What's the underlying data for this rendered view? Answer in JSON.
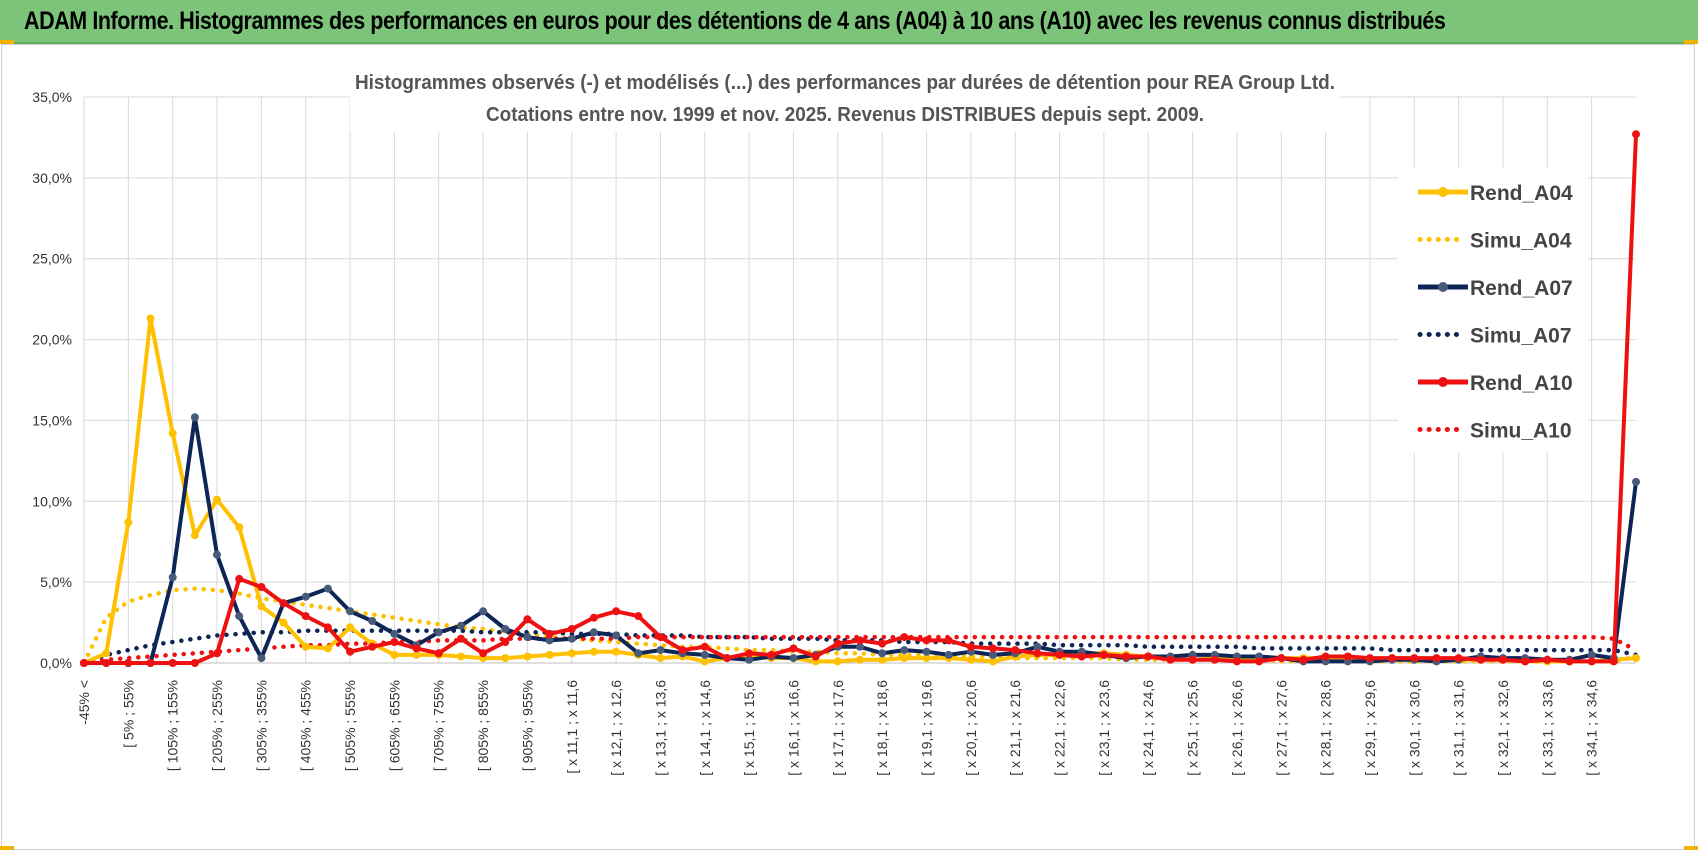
{
  "banner": {
    "title": "ADAM Informe. Histogrammes des performances en euros pour des détentions de 4 ans (A04) à 10 ans (A10) avec les revenus connus distribués",
    "color": "#7cc47a"
  },
  "chart_data": {
    "type": "line",
    "title": "Histogrammes observés (-) et modélisés (...) des performances par durées de détention pour REA Group Ltd.",
    "subtitle": "Cotations entre nov. 1999 et nov. 2025. Revenus DISTRIBUES depuis sept. 2009.",
    "xlabel": "",
    "ylabel": "",
    "ylim": [
      0,
      35
    ],
    "yticks": [
      "0,0%",
      "5,0%",
      "10,0%",
      "15,0%",
      "20,0%",
      "25,0%",
      "30,0%",
      "35,0%"
    ],
    "grid": true,
    "legend_position": "right",
    "x_labels": [
      "-45% <",
      "[ 5% ; 55%",
      "[ 105% ; 155%",
      "[ 205% ; 255%",
      "[ 305% ; 355%",
      "[ 405% ; 455%",
      "[ 505% ; 555%",
      "[ 605% ; 655%",
      "[ 705% ; 755%",
      "[ 805% ; 855%",
      "[ 905% ; 955%",
      "[ x 11,1 ; x 11,6",
      "[ x 12,1 ; x 12,6",
      "[ x 13,1 ; x 13,6",
      "[ x 14,1 ; x 14,6",
      "[ x 15,1 ; x 15,6",
      "[ x 16,1 ; x 16,6",
      "[ x 17,1 ; x 17,6",
      "[ x 18,1 ; x 18,6",
      "[ x 19,1 ; x 19,6",
      "[ x 20,1 ; x 20,6",
      "[ x 21,1 ; x 21,6",
      "[ x 22,1 ; x 22,6",
      "[ x 23,1 ; x 23,6",
      "[ x 24,1 ; x 24,6",
      "[ x 25,1 ; x 25,6",
      "[ x 26,1 ; x 26,6",
      "[ x 27,1 ; x 27,6",
      "[ x 28,1 ; x 28,6",
      "[ x 29,1 ; x 29,6",
      "[ x 30,1 ; x 30,6",
      "[ x 31,1 ; x 31,6",
      "[ x 32,1 ; x 32,6",
      "[ x 33,1 ; x 33,6",
      "[ x 34,1 ; x 34,6"
    ],
    "n_bins": 71,
    "series": [
      {
        "name": "Rend_A04",
        "color": "#ffc000",
        "style": "solid",
        "values": [
          0.0,
          0.6,
          8.7,
          21.3,
          14.2,
          7.9,
          10.1,
          8.4,
          3.5,
          2.5,
          1.0,
          0.9,
          2.2,
          1.2,
          0.5,
          0.5,
          0.5,
          0.4,
          0.3,
          0.3,
          0.4,
          0.5,
          0.6,
          0.7,
          0.7,
          0.5,
          0.3,
          0.4,
          0.1,
          0.3,
          0.4,
          0.3,
          0.3,
          0.1,
          0.1,
          0.2,
          0.2,
          0.3,
          0.3,
          0.3,
          0.2,
          0.1,
          0.4,
          0.5,
          0.5,
          0.6,
          0.6,
          0.5,
          0.4,
          0.3,
          0.2,
          0.3,
          0.3,
          0.2,
          0.3,
          0.3,
          0.3,
          0.3,
          0.2,
          0.3,
          0.2,
          0.2,
          0.2,
          0.2,
          0.2,
          0.1,
          0.1,
          0.1,
          0.1,
          0.2,
          0.3
        ]
      },
      {
        "name": "Simu_A04",
        "color": "#ffc000",
        "style": "dotted",
        "values": [
          0.0,
          2.8,
          3.8,
          4.2,
          4.5,
          4.6,
          4.5,
          4.3,
          4.0,
          3.8,
          3.6,
          3.4,
          3.2,
          3.0,
          2.8,
          2.6,
          2.4,
          2.2,
          2.1,
          1.9,
          1.8,
          1.6,
          1.5,
          1.4,
          1.3,
          1.2,
          1.1,
          1.0,
          1.0,
          0.9,
          0.8,
          0.8,
          0.7,
          0.7,
          0.6,
          0.6,
          0.5,
          0.5,
          0.5,
          0.4,
          0.4,
          0.4,
          0.3,
          0.3,
          0.3,
          0.3,
          0.3,
          0.2,
          0.2,
          0.2,
          0.2,
          0.2,
          0.2,
          0.2,
          0.1,
          0.1,
          0.1,
          0.1,
          0.1,
          0.1,
          0.1,
          0.1,
          0.1,
          0.1,
          0.1,
          0.1,
          0.1,
          0.1,
          0.1,
          0.1,
          0.4
        ]
      },
      {
        "name": "Rend_A07",
        "color": "#0d2557",
        "style": "solid",
        "values": [
          0.0,
          0.0,
          0.0,
          0.0,
          5.3,
          15.2,
          6.7,
          2.9,
          0.3,
          3.7,
          4.1,
          4.6,
          3.2,
          2.6,
          1.8,
          1.1,
          1.9,
          2.3,
          3.2,
          2.1,
          1.6,
          1.4,
          1.5,
          1.9,
          1.7,
          0.6,
          0.8,
          0.6,
          0.5,
          0.3,
          0.2,
          0.4,
          0.3,
          0.5,
          1.0,
          1.0,
          0.6,
          0.8,
          0.7,
          0.5,
          0.7,
          0.5,
          0.6,
          1.0,
          0.7,
          0.7,
          0.5,
          0.3,
          0.4,
          0.4,
          0.5,
          0.5,
          0.4,
          0.4,
          0.3,
          0.1,
          0.1,
          0.1,
          0.1,
          0.2,
          0.2,
          0.1,
          0.2,
          0.4,
          0.3,
          0.3,
          0.2,
          0.2,
          0.5,
          0.3,
          11.2
        ]
      },
      {
        "name": "Simu_A07",
        "color": "#0d2557",
        "style": "dotted",
        "values": [
          0.0,
          0.5,
          0.8,
          1.1,
          1.3,
          1.5,
          1.7,
          1.8,
          1.9,
          1.9,
          2.0,
          2.0,
          2.0,
          2.0,
          2.0,
          2.0,
          2.0,
          2.0,
          1.9,
          1.9,
          1.9,
          1.9,
          1.8,
          1.8,
          1.8,
          1.7,
          1.7,
          1.7,
          1.6,
          1.6,
          1.6,
          1.5,
          1.5,
          1.5,
          1.4,
          1.4,
          1.4,
          1.3,
          1.3,
          1.3,
          1.2,
          1.2,
          1.2,
          1.2,
          1.1,
          1.1,
          1.1,
          1.1,
          1.0,
          1.0,
          1.0,
          1.0,
          1.0,
          0.9,
          0.9,
          0.9,
          0.9,
          0.9,
          0.9,
          0.8,
          0.8,
          0.8,
          0.8,
          0.8,
          0.8,
          0.8,
          0.8,
          0.8,
          0.8,
          0.8,
          0.5
        ]
      },
      {
        "name": "Rend_A10",
        "color": "#ee1111",
        "style": "solid",
        "values": [
          0.0,
          0.0,
          0.0,
          0.0,
          0.0,
          0.0,
          0.6,
          5.2,
          4.7,
          3.7,
          2.9,
          2.2,
          0.7,
          1.0,
          1.3,
          0.9,
          0.6,
          1.5,
          0.6,
          1.3,
          2.7,
          1.8,
          2.1,
          2.8,
          3.2,
          2.9,
          1.6,
          0.8,
          1.0,
          0.3,
          0.6,
          0.5,
          0.9,
          0.4,
          1.2,
          1.4,
          1.2,
          1.6,
          1.4,
          1.4,
          1.0,
          0.9,
          0.8,
          0.6,
          0.5,
          0.4,
          0.5,
          0.4,
          0.4,
          0.2,
          0.2,
          0.2,
          0.1,
          0.1,
          0.3,
          0.2,
          0.4,
          0.4,
          0.3,
          0.3,
          0.3,
          0.3,
          0.3,
          0.2,
          0.2,
          0.1,
          0.2,
          0.1,
          0.1,
          0.1,
          32.7
        ]
      },
      {
        "name": "Simu_A10",
        "color": "#ee1111",
        "style": "dotted",
        "values": [
          0.0,
          0.2,
          0.3,
          0.4,
          0.5,
          0.6,
          0.7,
          0.8,
          0.9,
          1.0,
          1.1,
          1.1,
          1.2,
          1.2,
          1.3,
          1.3,
          1.4,
          1.4,
          1.4,
          1.5,
          1.5,
          1.5,
          1.5,
          1.5,
          1.5,
          1.6,
          1.6,
          1.6,
          1.6,
          1.6,
          1.6,
          1.6,
          1.6,
          1.6,
          1.6,
          1.6,
          1.6,
          1.6,
          1.6,
          1.6,
          1.6,
          1.6,
          1.6,
          1.6,
          1.6,
          1.6,
          1.6,
          1.6,
          1.6,
          1.6,
          1.6,
          1.6,
          1.6,
          1.6,
          1.6,
          1.6,
          1.6,
          1.6,
          1.6,
          1.6,
          1.6,
          1.6,
          1.6,
          1.6,
          1.6,
          1.6,
          1.6,
          1.6,
          1.6,
          1.5,
          0.8
        ]
      }
    ]
  }
}
